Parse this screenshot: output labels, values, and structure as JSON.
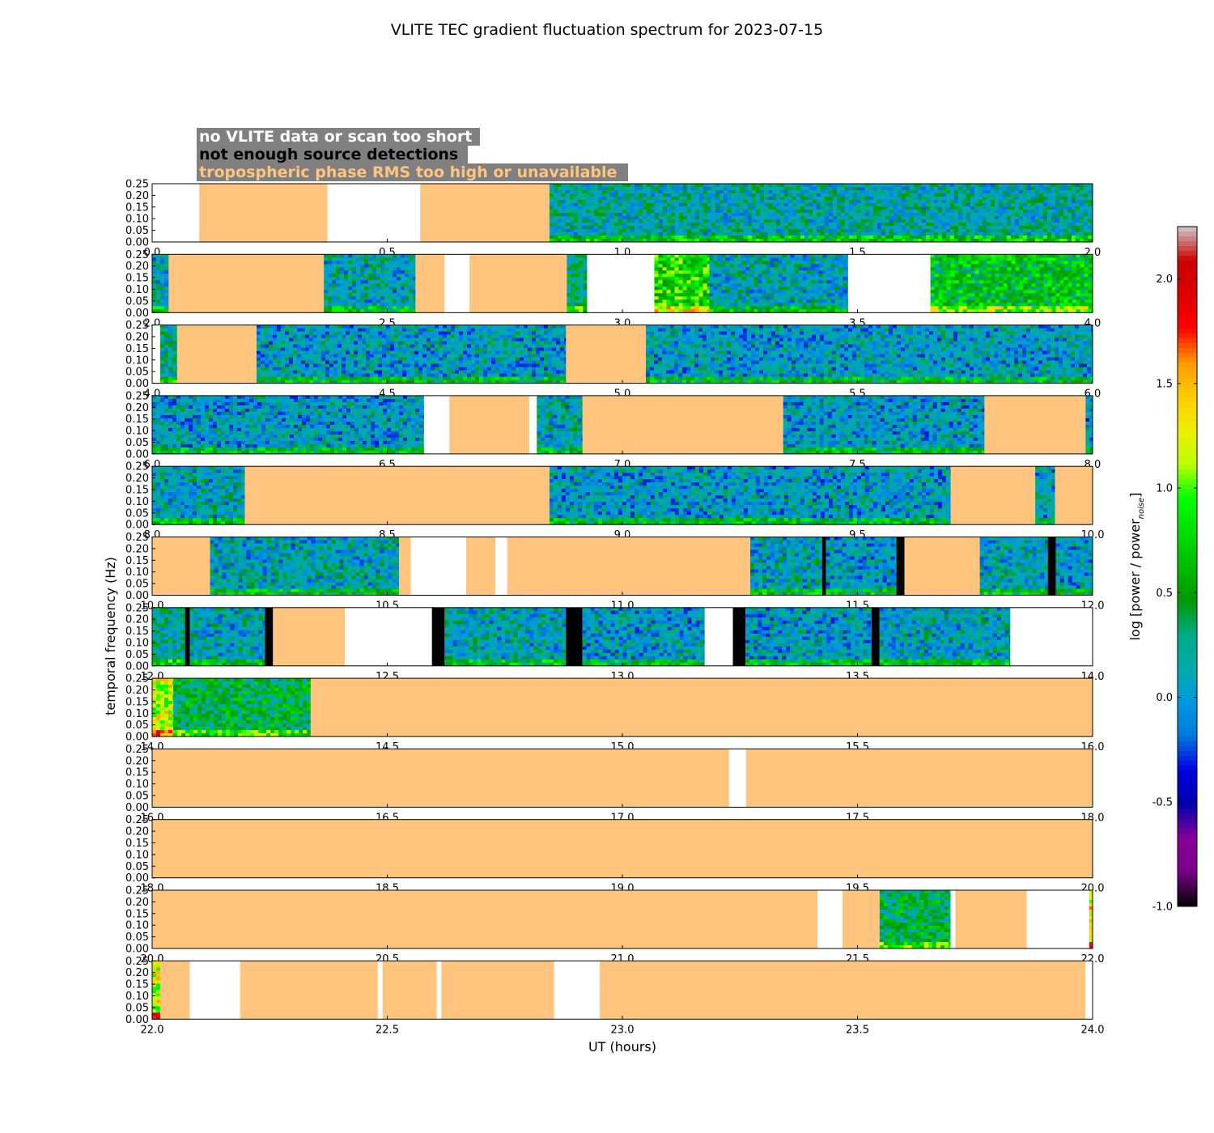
{
  "chart_data": {
    "type": "heatmap",
    "title": "VLITE TEC gradient fluctuation spectrum for 2023-07-15",
    "xlabel": "UT (hours)",
    "ylabel": "temporal frequency (Hz)",
    "ylim": [
      0,
      0.25
    ],
    "y_ticks": [
      "0.00",
      "0.05",
      "0.10",
      "0.15",
      "0.20",
      "0.25"
    ],
    "grid": false,
    "legend": {
      "placement": "top-left",
      "entries": [
        {
          "label": "no VLITE data or scan too short",
          "text_color": "#ffffff"
        },
        {
          "label": "not enough source detections",
          "text_color": "#000000"
        },
        {
          "label": "tropospheric phase RMS too high or unavailable",
          "text_color": "#ffc57f"
        }
      ]
    },
    "colorbar": {
      "label_main": "log [power / power",
      "label_sub": "noise",
      "label_end": "]",
      "range": [
        -1.0,
        2.25
      ],
      "ticks": [
        "-1.0",
        "-0.5",
        "0.0",
        "0.5",
        "1.0",
        "1.5",
        "2.0"
      ],
      "tick_values": [
        -1.0,
        -0.5,
        0.0,
        0.5,
        1.0,
        1.5,
        2.0
      ],
      "colormap": "nipy_spectral"
    },
    "status_colors": {
      "no_data": "#ffffff",
      "few_detections": "#000000",
      "tropospheric": "#ffc57f"
    },
    "panels": [
      {
        "range": [
          0,
          2
        ],
        "ticks": [
          "0.0",
          "0.5",
          "1.0",
          "1.5",
          "2.0"
        ],
        "segments": [
          {
            "start": 0.0,
            "end": 0.1,
            "status": "no_data"
          },
          {
            "start": 0.1,
            "end": 0.373,
            "status": "tropospheric"
          },
          {
            "start": 0.373,
            "end": 0.57,
            "status": "no_data"
          },
          {
            "start": 0.57,
            "end": 0.845,
            "status": "tropospheric"
          },
          {
            "start": 0.845,
            "end": 2.0,
            "status": "data",
            "level": 0.15
          }
        ]
      },
      {
        "range": [
          2,
          4
        ],
        "ticks": [
          "2.0",
          "2.5",
          "3.0",
          "3.5",
          "4.0"
        ],
        "segments": [
          {
            "start": 2.0,
            "end": 2.035,
            "status": "data",
            "level": 0.1
          },
          {
            "start": 2.035,
            "end": 2.365,
            "status": "tropospheric"
          },
          {
            "start": 2.365,
            "end": 2.56,
            "status": "data",
            "level": 0.1
          },
          {
            "start": 2.56,
            "end": 2.622,
            "status": "tropospheric"
          },
          {
            "start": 2.622,
            "end": 2.675,
            "status": "no_data"
          },
          {
            "start": 2.675,
            "end": 2.882,
            "status": "tropospheric"
          },
          {
            "start": 2.882,
            "end": 2.925,
            "status": "data",
            "level": 0.3
          },
          {
            "start": 2.925,
            "end": 3.068,
            "status": "no_data"
          },
          {
            "start": 3.068,
            "end": 3.185,
            "status": "data",
            "level": 0.8
          },
          {
            "start": 3.185,
            "end": 3.48,
            "status": "data",
            "level": 0.1
          },
          {
            "start": 3.48,
            "end": 3.655,
            "status": "no_data"
          },
          {
            "start": 3.655,
            "end": 4.0,
            "status": "data",
            "level": 0.6
          }
        ]
      },
      {
        "range": [
          4,
          6
        ],
        "ticks": [
          "4.0",
          "4.5",
          "5.0",
          "5.5",
          "6.0"
        ],
        "segments": [
          {
            "start": 4.0,
            "end": 4.017,
            "status": "no_data"
          },
          {
            "start": 4.017,
            "end": 4.053,
            "status": "data",
            "level": 0.2
          },
          {
            "start": 4.053,
            "end": 4.222,
            "status": "tropospheric"
          },
          {
            "start": 4.222,
            "end": 4.88,
            "status": "data",
            "level": 0.05
          },
          {
            "start": 4.88,
            "end": 5.05,
            "status": "tropospheric"
          },
          {
            "start": 5.05,
            "end": 6.0,
            "status": "data",
            "level": 0.05
          }
        ]
      },
      {
        "range": [
          6,
          8
        ],
        "ticks": [
          "6.0",
          "6.5",
          "7.0",
          "7.5",
          "8.0"
        ],
        "segments": [
          {
            "start": 6.0,
            "end": 6.578,
            "status": "data",
            "level": 0.05
          },
          {
            "start": 6.578,
            "end": 6.632,
            "status": "no_data"
          },
          {
            "start": 6.632,
            "end": 6.802,
            "status": "tropospheric"
          },
          {
            "start": 6.802,
            "end": 6.818,
            "status": "no_data"
          },
          {
            "start": 6.818,
            "end": 6.915,
            "status": "data",
            "level": 0.1
          },
          {
            "start": 6.915,
            "end": 7.342,
            "status": "tropospheric"
          },
          {
            "start": 7.342,
            "end": 7.77,
            "status": "data",
            "level": 0.05
          },
          {
            "start": 7.77,
            "end": 7.985,
            "status": "tropospheric"
          },
          {
            "start": 7.985,
            "end": 8.0,
            "status": "data",
            "level": 0.0
          }
        ]
      },
      {
        "range": [
          8,
          10
        ],
        "ticks": [
          "8.0",
          "8.5",
          "9.0",
          "9.5",
          "10.0"
        ],
        "segments": [
          {
            "start": 8.0,
            "end": 8.197,
            "status": "data",
            "level": 0.1
          },
          {
            "start": 8.197,
            "end": 8.845,
            "status": "tropospheric"
          },
          {
            "start": 8.845,
            "end": 9.698,
            "status": "data",
            "level": 0.05
          },
          {
            "start": 9.698,
            "end": 9.878,
            "status": "tropospheric"
          },
          {
            "start": 9.878,
            "end": 9.92,
            "status": "data",
            "level": 0.05
          },
          {
            "start": 9.92,
            "end": 10.0,
            "status": "tropospheric"
          }
        ]
      },
      {
        "range": [
          10,
          12
        ],
        "ticks": [
          "10.0",
          "10.5",
          "11.0",
          "11.5",
          "12.0"
        ],
        "segments": [
          {
            "start": 10.0,
            "end": 10.123,
            "status": "tropospheric"
          },
          {
            "start": 10.123,
            "end": 10.525,
            "status": "data",
            "level": 0.1
          },
          {
            "start": 10.525,
            "end": 10.55,
            "status": "tropospheric"
          },
          {
            "start": 10.55,
            "end": 10.668,
            "status": "no_data"
          },
          {
            "start": 10.668,
            "end": 10.73,
            "status": "tropospheric"
          },
          {
            "start": 10.73,
            "end": 10.755,
            "status": "no_data"
          },
          {
            "start": 10.755,
            "end": 11.272,
            "status": "tropospheric"
          },
          {
            "start": 11.272,
            "end": 11.425,
            "status": "data",
            "level": 0.1
          },
          {
            "start": 11.425,
            "end": 11.433,
            "status": "few_detections"
          },
          {
            "start": 11.433,
            "end": 11.583,
            "status": "data",
            "level": 0.05
          },
          {
            "start": 11.583,
            "end": 11.6,
            "status": "few_detections"
          },
          {
            "start": 11.6,
            "end": 11.76,
            "status": "tropospheric"
          },
          {
            "start": 11.76,
            "end": 11.905,
            "status": "data",
            "level": 0.1
          },
          {
            "start": 11.905,
            "end": 11.922,
            "status": "few_detections"
          },
          {
            "start": 11.922,
            "end": 12.0,
            "status": "data",
            "level": 0.05
          }
        ]
      },
      {
        "range": [
          12,
          14
        ],
        "ticks": [
          "12.0",
          "12.5",
          "13.0",
          "13.5",
          "14.0"
        ],
        "segments": [
          {
            "start": 12.0,
            "end": 12.07,
            "status": "data",
            "level": 0.2
          },
          {
            "start": 12.07,
            "end": 12.08,
            "status": "few_detections"
          },
          {
            "start": 12.08,
            "end": 12.24,
            "status": "data",
            "level": 0.1
          },
          {
            "start": 12.24,
            "end": 12.257,
            "status": "few_detections"
          },
          {
            "start": 12.257,
            "end": 12.41,
            "status": "tropospheric"
          },
          {
            "start": 12.41,
            "end": 12.595,
            "status": "no_data"
          },
          {
            "start": 12.595,
            "end": 12.622,
            "status": "few_detections"
          },
          {
            "start": 12.622,
            "end": 12.88,
            "status": "data",
            "level": 0.1
          },
          {
            "start": 12.88,
            "end": 12.915,
            "status": "few_detections"
          },
          {
            "start": 12.915,
            "end": 13.175,
            "status": "data",
            "level": 0.05
          },
          {
            "start": 13.175,
            "end": 13.235,
            "status": "no_data"
          },
          {
            "start": 13.235,
            "end": 13.262,
            "status": "few_detections"
          },
          {
            "start": 13.262,
            "end": 13.53,
            "status": "data",
            "level": 0.05
          },
          {
            "start": 13.53,
            "end": 13.547,
            "status": "few_detections"
          },
          {
            "start": 13.547,
            "end": 13.825,
            "status": "data",
            "level": 0.1
          },
          {
            "start": 13.825,
            "end": 14.0,
            "status": "no_data"
          }
        ]
      },
      {
        "range": [
          14,
          16
        ],
        "ticks": [
          "14.0",
          "14.5",
          "15.0",
          "15.5",
          "16.0"
        ],
        "segments": [
          {
            "start": 14.0,
            "end": 14.045,
            "status": "data",
            "level": 1.2
          },
          {
            "start": 14.045,
            "end": 14.337,
            "status": "data",
            "level": 0.4
          },
          {
            "start": 14.337,
            "end": 16.0,
            "status": "tropospheric"
          }
        ]
      },
      {
        "range": [
          16,
          18
        ],
        "ticks": [
          "16.0",
          "16.5",
          "17.0",
          "17.5",
          "18.0"
        ],
        "segments": [
          {
            "start": 16.0,
            "end": 17.227,
            "status": "tropospheric"
          },
          {
            "start": 17.227,
            "end": 17.263,
            "status": "no_data"
          },
          {
            "start": 17.263,
            "end": 18.0,
            "status": "tropospheric"
          }
        ]
      },
      {
        "range": [
          18,
          20
        ],
        "ticks": [
          "18.0",
          "18.5",
          "19.0",
          "19.5",
          "20.0"
        ],
        "segments": [
          {
            "start": 18.0,
            "end": 20.0,
            "status": "tropospheric"
          }
        ]
      },
      {
        "range": [
          20,
          22
        ],
        "ticks": [
          "20.0",
          "20.5",
          "21.0",
          "21.5",
          "22.0"
        ],
        "segments": [
          {
            "start": 20.0,
            "end": 21.415,
            "status": "tropospheric"
          },
          {
            "start": 21.415,
            "end": 21.468,
            "status": "no_data"
          },
          {
            "start": 21.468,
            "end": 21.547,
            "status": "tropospheric"
          },
          {
            "start": 21.547,
            "end": 21.698,
            "status": "data",
            "level": 0.4
          },
          {
            "start": 21.698,
            "end": 21.708,
            "status": "no_data"
          },
          {
            "start": 21.708,
            "end": 21.86,
            "status": "tropospheric"
          },
          {
            "start": 21.86,
            "end": 21.993,
            "status": "no_data"
          },
          {
            "start": 21.993,
            "end": 22.0,
            "status": "data",
            "level": 1.3
          }
        ]
      },
      {
        "range": [
          22,
          24
        ],
        "ticks": [
          "22.0",
          "22.5",
          "23.0",
          "23.5",
          "24.0"
        ],
        "segments": [
          {
            "start": 22.0,
            "end": 22.017,
            "status": "data",
            "level": 1.2
          },
          {
            "start": 22.017,
            "end": 22.08,
            "status": "tropospheric"
          },
          {
            "start": 22.08,
            "end": 22.187,
            "status": "no_data"
          },
          {
            "start": 22.187,
            "end": 22.48,
            "status": "tropospheric"
          },
          {
            "start": 22.48,
            "end": 22.49,
            "status": "no_data"
          },
          {
            "start": 22.49,
            "end": 22.605,
            "status": "tropospheric"
          },
          {
            "start": 22.605,
            "end": 22.615,
            "status": "no_data"
          },
          {
            "start": 22.615,
            "end": 22.855,
            "status": "tropospheric"
          },
          {
            "start": 22.855,
            "end": 22.952,
            "status": "no_data"
          },
          {
            "start": 22.952,
            "end": 23.985,
            "status": "tropospheric"
          },
          {
            "start": 23.985,
            "end": 24.0,
            "status": "no_data"
          }
        ]
      }
    ]
  }
}
